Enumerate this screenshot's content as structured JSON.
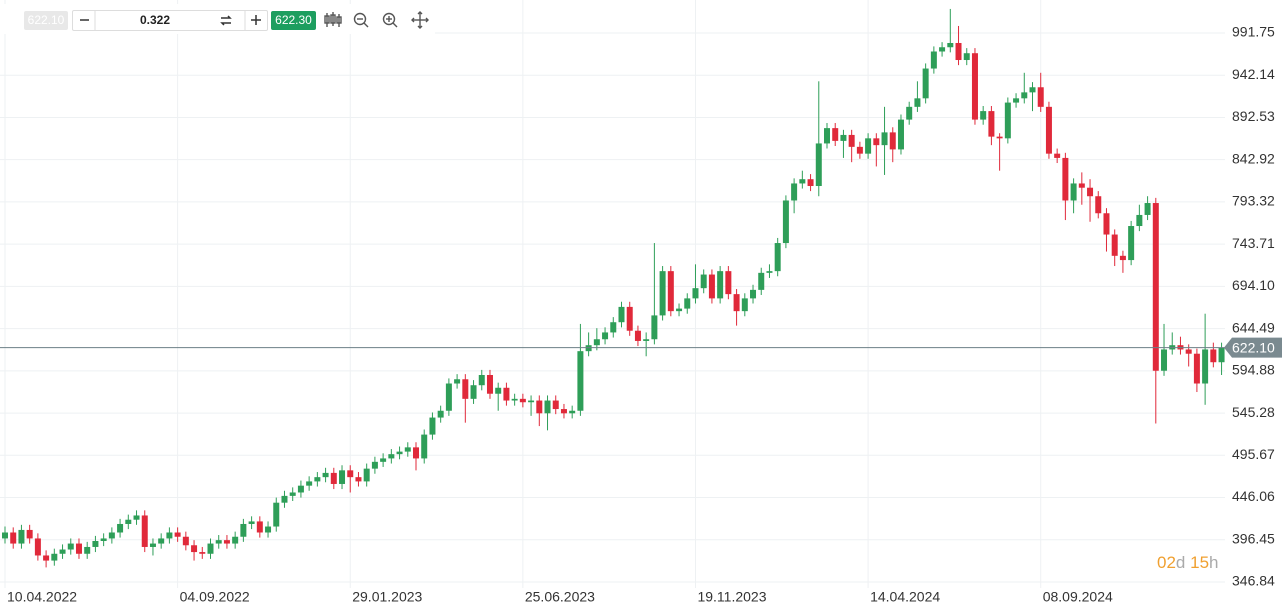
{
  "toolbar": {
    "sell": "622.10",
    "spread": "0.322",
    "buy": "622.30"
  },
  "countdown": {
    "days": "02",
    "day_unit": "d",
    "hours": "15",
    "hour_unit": "h"
  },
  "chart_data": {
    "type": "candlestick",
    "up_color": "#2e9e58",
    "down_color": "#e0293a",
    "grid": true,
    "ylim": [
      316.3,
      1030.5
    ],
    "yticks": [
      991.75,
      942.14,
      892.53,
      842.92,
      793.32,
      743.71,
      {
        "value": 694.1,
        "label": "694.10"
      },
      644.49,
      594.88,
      545.28,
      495.67,
      446.06,
      396.45,
      346.84
    ],
    "xticks": [
      {
        "value": 0,
        "label": "10.04.2022"
      },
      {
        "value": 21,
        "label": "04.09.2022"
      },
      {
        "value": 42,
        "label": "29.01.2023"
      },
      {
        "value": 63,
        "label": "25.06.2023"
      },
      {
        "value": 84,
        "label": "19.11.2023"
      },
      {
        "value": 105,
        "label": "14.04.2024"
      },
      {
        "value": 126,
        "label": "08.09.2024"
      }
    ],
    "last_price": {
      "value": 622.1,
      "label": "622.10"
    },
    "candles": [
      [
        398,
        412,
        392,
        405
      ],
      [
        405,
        411,
        386,
        392
      ],
      [
        392,
        414,
        386,
        408
      ],
      [
        408,
        414,
        392,
        398
      ],
      [
        398,
        404,
        372,
        378
      ],
      [
        378,
        384,
        364,
        372
      ],
      [
        372,
        386,
        366,
        380
      ],
      [
        380,
        391,
        374,
        385
      ],
      [
        385,
        398,
        379,
        392
      ],
      [
        392,
        398,
        374,
        380
      ],
      [
        380,
        394,
        374,
        388
      ],
      [
        388,
        401,
        382,
        395
      ],
      [
        395,
        404,
        389,
        398
      ],
      [
        398,
        411,
        392,
        405
      ],
      [
        405,
        421,
        399,
        415
      ],
      [
        415,
        426,
        409,
        420
      ],
      [
        420,
        431,
        414,
        425
      ],
      [
        425,
        431,
        382,
        388
      ],
      [
        388,
        398,
        378,
        392
      ],
      [
        392,
        404,
        386,
        398
      ],
      [
        398,
        411,
        392,
        405
      ],
      [
        405,
        411,
        394,
        400
      ],
      [
        400,
        406,
        384,
        390
      ],
      [
        390,
        396,
        372,
        382
      ],
      [
        382,
        388,
        374,
        380
      ],
      [
        380,
        398,
        374,
        392
      ],
      [
        392,
        402,
        386,
        396
      ],
      [
        396,
        402,
        386,
        392
      ],
      [
        392,
        406,
        386,
        400
      ],
      [
        400,
        421,
        394,
        415
      ],
      [
        415,
        424,
        409,
        418
      ],
      [
        418,
        424,
        399,
        405
      ],
      [
        405,
        418,
        399,
        412
      ],
      [
        412,
        446,
        406,
        440
      ],
      [
        440,
        454,
        434,
        448
      ],
      [
        448,
        458,
        442,
        452
      ],
      [
        452,
        466,
        446,
        460
      ],
      [
        460,
        471,
        454,
        465
      ],
      [
        465,
        476,
        459,
        470
      ],
      [
        470,
        481,
        464,
        475
      ],
      [
        475,
        481,
        456,
        462
      ],
      [
        462,
        484,
        456,
        478
      ],
      [
        478,
        484,
        452,
        470
      ],
      [
        470,
        476,
        459,
        465
      ],
      [
        465,
        486,
        459,
        480
      ],
      [
        480,
        494,
        474,
        488
      ],
      [
        488,
        498,
        482,
        492
      ],
      [
        492,
        503,
        486,
        497
      ],
      [
        497,
        506,
        491,
        500
      ],
      [
        500,
        511,
        494,
        505
      ],
      [
        505,
        511,
        478,
        492
      ],
      [
        492,
        526,
        486,
        520
      ],
      [
        520,
        546,
        514,
        540
      ],
      [
        540,
        554,
        534,
        548
      ],
      [
        548,
        586,
        542,
        580
      ],
      [
        580,
        591,
        574,
        585
      ],
      [
        585,
        591,
        534,
        562
      ],
      [
        562,
        584,
        556,
        578
      ],
      [
        578,
        596,
        572,
        590
      ],
      [
        590,
        596,
        562,
        568
      ],
      [
        568,
        581,
        548,
        575
      ],
      [
        575,
        581,
        554,
        560
      ],
      [
        560,
        568,
        554,
        562
      ],
      [
        562,
        568,
        552,
        558
      ],
      [
        558,
        566,
        542,
        560
      ],
      [
        560,
        566,
        530,
        545
      ],
      [
        545,
        566,
        525,
        560
      ],
      [
        560,
        566,
        544,
        550
      ],
      [
        550,
        556,
        539,
        545
      ],
      [
        545,
        554,
        539,
        548
      ],
      [
        548,
        650,
        542,
        618
      ],
      [
        618,
        640,
        612,
        625
      ],
      [
        625,
        645,
        619,
        632
      ],
      [
        632,
        646,
        626,
        640
      ],
      [
        640,
        658,
        634,
        652
      ],
      [
        652,
        676,
        646,
        670
      ],
      [
        670,
        676,
        636,
        642
      ],
      [
        642,
        648,
        624,
        630
      ],
      [
        630,
        640,
        612,
        632
      ],
      [
        632,
        745,
        626,
        660
      ],
      [
        660,
        718,
        654,
        712
      ],
      [
        712,
        718,
        659,
        665
      ],
      [
        665,
        674,
        659,
        668
      ],
      [
        668,
        686,
        662,
        680
      ],
      [
        680,
        720,
        674,
        692
      ],
      [
        692,
        714,
        686,
        708
      ],
      [
        708,
        714,
        674,
        680
      ],
      [
        680,
        718,
        674,
        712
      ],
      [
        712,
        718,
        679,
        685
      ],
      [
        685,
        691,
        648,
        665
      ],
      [
        665,
        686,
        659,
        680
      ],
      [
        680,
        696,
        674,
        690
      ],
      [
        690,
        716,
        684,
        710
      ],
      [
        710,
        720,
        704,
        712
      ],
      [
        712,
        751,
        706,
        745
      ],
      [
        745,
        801,
        739,
        795
      ],
      [
        795,
        821,
        780,
        815
      ],
      [
        815,
        830,
        809,
        820
      ],
      [
        820,
        826,
        806,
        812
      ],
      [
        812,
        935,
        800,
        862
      ],
      [
        862,
        886,
        856,
        880
      ],
      [
        880,
        886,
        859,
        865
      ],
      [
        865,
        878,
        845,
        872
      ],
      [
        872,
        878,
        840,
        858
      ],
      [
        858,
        864,
        844,
        850
      ],
      [
        850,
        874,
        844,
        868
      ],
      [
        868,
        874,
        835,
        860
      ],
      [
        860,
        905,
        825,
        875
      ],
      [
        875,
        881,
        840,
        855
      ],
      [
        855,
        896,
        849,
        890
      ],
      [
        890,
        911,
        884,
        905
      ],
      [
        905,
        935,
        899,
        915
      ],
      [
        915,
        956,
        909,
        950
      ],
      [
        950,
        976,
        944,
        970
      ],
      [
        970,
        981,
        964,
        975
      ],
      [
        975,
        1020,
        969,
        980
      ],
      [
        980,
        1000,
        954,
        960
      ],
      [
        960,
        974,
        954,
        968
      ],
      [
        968,
        974,
        884,
        890
      ],
      [
        890,
        906,
        884,
        900
      ],
      [
        900,
        906,
        860,
        870
      ],
      [
        870,
        874,
        830,
        868
      ],
      [
        868,
        916,
        862,
        910
      ],
      [
        910,
        921,
        904,
        915
      ],
      [
        915,
        945,
        909,
        922
      ],
      [
        922,
        934,
        900,
        928
      ],
      [
        928,
        945,
        899,
        905
      ],
      [
        905,
        911,
        844,
        850
      ],
      [
        850,
        856,
        839,
        845
      ],
      [
        845,
        851,
        772,
        795
      ],
      [
        795,
        821,
        780,
        815
      ],
      [
        815,
        828,
        790,
        810
      ],
      [
        810,
        820,
        770,
        800
      ],
      [
        800,
        806,
        774,
        780
      ],
      [
        780,
        786,
        735,
        755
      ],
      [
        755,
        761,
        718,
        730
      ],
      [
        730,
        736,
        710,
        725
      ],
      [
        725,
        771,
        719,
        765
      ],
      [
        765,
        790,
        759,
        778
      ],
      [
        778,
        800,
        772,
        792
      ],
      [
        792,
        798,
        533,
        595
      ],
      [
        595,
        650,
        589,
        620
      ],
      [
        620,
        640,
        614,
        625
      ],
      [
        625,
        635,
        614,
        620
      ],
      [
        620,
        626,
        600,
        615
      ],
      [
        615,
        621,
        570,
        580
      ],
      [
        580,
        662,
        555,
        620
      ],
      [
        620,
        628,
        599,
        605
      ],
      [
        605,
        628,
        590,
        622.1
      ]
    ]
  }
}
